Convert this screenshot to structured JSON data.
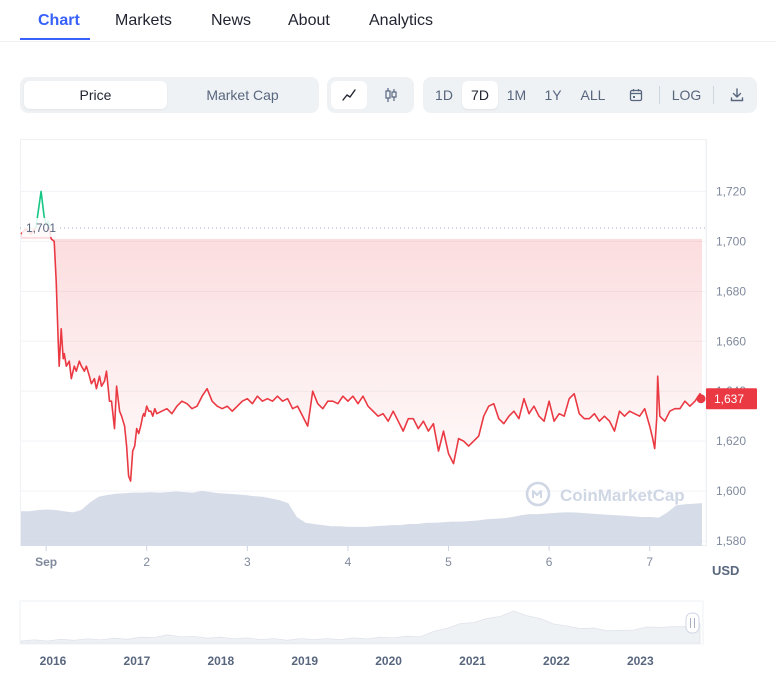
{
  "tabs": [
    {
      "label": "Chart",
      "active": true
    },
    {
      "label": "Markets",
      "active": false
    },
    {
      "label": "News",
      "active": false
    },
    {
      "label": "About",
      "active": false
    },
    {
      "label": "Analytics",
      "active": false
    }
  ],
  "toolbar": {
    "metric_toggle": [
      {
        "label": "Price",
        "active": true
      },
      {
        "label": "Market Cap",
        "active": false
      }
    ],
    "chart_style_icons": [
      "line-chart-icon",
      "candlestick-icon"
    ],
    "ranges": [
      {
        "label": "1D",
        "active": false
      },
      {
        "label": "7D",
        "active": true
      },
      {
        "label": "1M",
        "active": false
      },
      {
        "label": "1Y",
        "active": false
      },
      {
        "label": "ALL",
        "active": false
      }
    ],
    "calendar_icon": "calendar-icon",
    "log_label": "LOG",
    "download_icon": "download-icon"
  },
  "colors": {
    "accent": "#3861fb",
    "down": "#ea3943",
    "up": "#16c784",
    "volume": "#cfd6e4"
  },
  "chart_data": {
    "type": "line",
    "y_axis": {
      "ticks": [
        1580,
        1600,
        1620,
        1640,
        1660,
        1680,
        1700,
        1720
      ],
      "range": [
        1578,
        1741
      ],
      "position": "right",
      "unit": "USD"
    },
    "x_axis": {
      "ticks": [
        "Sep",
        "2",
        "3",
        "4",
        "5",
        "6",
        "7"
      ],
      "range": [
        0.75,
        7.52
      ]
    },
    "open_reference": {
      "label": "1,701",
      "value": 1701
    },
    "current": {
      "label": "1,637",
      "value": 1637
    },
    "unit_label": "USD",
    "watermark": "CoinMarketCap",
    "series": [
      {
        "x": [
          0.75,
          0.8,
          0.85,
          0.9,
          0.95,
          0.98,
          1.0,
          1.02,
          1.05,
          1.08,
          1.1,
          1.12,
          1.13,
          1.15,
          1.17,
          1.18,
          1.2,
          1.23,
          1.25,
          1.28,
          1.3,
          1.33,
          1.35,
          1.38,
          1.4,
          1.43,
          1.45,
          1.48,
          1.5,
          1.53,
          1.55,
          1.58,
          1.6,
          1.63,
          1.65,
          1.68,
          1.7,
          1.73,
          1.75,
          1.78,
          1.8,
          1.82,
          1.84,
          1.86,
          1.88,
          1.9,
          1.92,
          1.94,
          1.96,
          1.97,
          1.98,
          1.99,
          2.0,
          2.02,
          2.04,
          2.06,
          2.08,
          2.1,
          2.15,
          2.2,
          2.25,
          2.3,
          2.35,
          2.4,
          2.45,
          2.5,
          2.55,
          2.6,
          2.65,
          2.7,
          2.75,
          2.8,
          2.85,
          2.9,
          2.95,
          3.0,
          3.05,
          3.1,
          3.15,
          3.2,
          3.25,
          3.3,
          3.35,
          3.4,
          3.45,
          3.5,
          3.55,
          3.6,
          3.65,
          3.7,
          3.75,
          3.8,
          3.85,
          3.9,
          3.95,
          4.0,
          4.05,
          4.1,
          4.15,
          4.2,
          4.25,
          4.3,
          4.35,
          4.4,
          4.45,
          4.5,
          4.55,
          4.6,
          4.65,
          4.7,
          4.75,
          4.8,
          4.85,
          4.9,
          4.95,
          5.0,
          5.05,
          5.1,
          5.15,
          5.2,
          5.25,
          5.3,
          5.35,
          5.4,
          5.45,
          5.5,
          5.55,
          5.6,
          5.65,
          5.7,
          5.75,
          5.8,
          5.85,
          5.9,
          5.95,
          6.0,
          6.05,
          6.1,
          6.15,
          6.2,
          6.25,
          6.3,
          6.35,
          6.4,
          6.45,
          6.5,
          6.55,
          6.6,
          6.65,
          6.7,
          6.75,
          6.8,
          6.85,
          6.9,
          6.95,
          7.0,
          7.03,
          7.05,
          7.07,
          7.08,
          7.1,
          7.15,
          7.2,
          7.25,
          7.3,
          7.35,
          7.4,
          7.45,
          7.5,
          7.52
        ],
        "y": [
          1703,
          1705,
          1703,
          1706,
          1720,
          1710,
          1707,
          1708,
          1701,
          1700,
          1684,
          1660,
          1650,
          1665,
          1653,
          1655,
          1650,
          1652,
          1645,
          1650,
          1648,
          1652,
          1650,
          1648,
          1650,
          1646,
          1643,
          1645,
          1641,
          1646,
          1642,
          1644,
          1648,
          1636,
          1636,
          1625,
          1642,
          1632,
          1630,
          1626,
          1618,
          1606,
          1604,
          1616,
          1618,
          1625,
          1623,
          1626,
          1630,
          1631,
          1630,
          1632,
          1634,
          1632,
          1632,
          1630,
          1633,
          1631,
          1632,
          1633,
          1631,
          1634,
          1636,
          1635,
          1633,
          1634,
          1638,
          1641,
          1636,
          1634,
          1633,
          1634,
          1632,
          1634,
          1636,
          1637,
          1635,
          1638,
          1636,
          1637,
          1636,
          1638,
          1636,
          1637,
          1633,
          1634,
          1630,
          1626,
          1640,
          1635,
          1633,
          1636,
          1636,
          1635,
          1638,
          1636,
          1638,
          1635,
          1638,
          1634,
          1632,
          1630,
          1631,
          1628,
          1632,
          1628,
          1624,
          1629,
          1629,
          1625,
          1628,
          1624,
          1627,
          1616,
          1624,
          1615,
          1611,
          1621,
          1620,
          1618,
          1620,
          1622,
          1630,
          1634,
          1635,
          1629,
          1627,
          1630,
          1632,
          1629,
          1637,
          1631,
          1634,
          1630,
          1628,
          1636,
          1628,
          1631,
          1630,
          1637,
          1639,
          1631,
          1629,
          1629,
          1631,
          1628,
          1630,
          1628,
          1624,
          1632,
          1630,
          1632,
          1631,
          1630,
          1633,
          1626,
          1621,
          1617,
          1629,
          1646,
          1630,
          1628,
          1632,
          1633,
          1633,
          1636,
          1634,
          1636,
          1639,
          1637
        ]
      }
    ],
    "volume_profile": [
      0.6,
      0.6,
      0.62,
      0.63,
      0.62,
      0.6,
      0.58,
      0.62,
      0.75,
      0.85,
      0.88,
      0.9,
      0.91,
      0.92,
      0.92,
      0.93,
      0.92,
      0.93,
      0.94,
      0.93,
      0.92,
      0.95,
      0.93,
      0.91,
      0.9,
      0.89,
      0.88,
      0.86,
      0.85,
      0.82,
      0.79,
      0.74,
      0.5,
      0.4,
      0.38,
      0.36,
      0.34,
      0.34,
      0.33,
      0.33,
      0.33,
      0.34,
      0.35,
      0.36,
      0.36,
      0.38,
      0.38,
      0.4,
      0.4,
      0.41,
      0.42,
      0.42,
      0.43,
      0.44,
      0.46,
      0.47,
      0.48,
      0.5,
      0.53,
      0.55,
      0.55,
      0.56,
      0.57,
      0.58,
      0.58,
      0.57,
      0.56,
      0.55,
      0.54,
      0.53,
      0.52,
      0.51,
      0.5,
      0.5,
      0.49,
      0.58,
      0.7,
      0.72,
      0.73,
      0.74
    ],
    "overview": {
      "x_ticks": [
        "2016",
        "2017",
        "2018",
        "2019",
        "2020",
        "2021",
        "2022",
        "2023"
      ]
    }
  }
}
